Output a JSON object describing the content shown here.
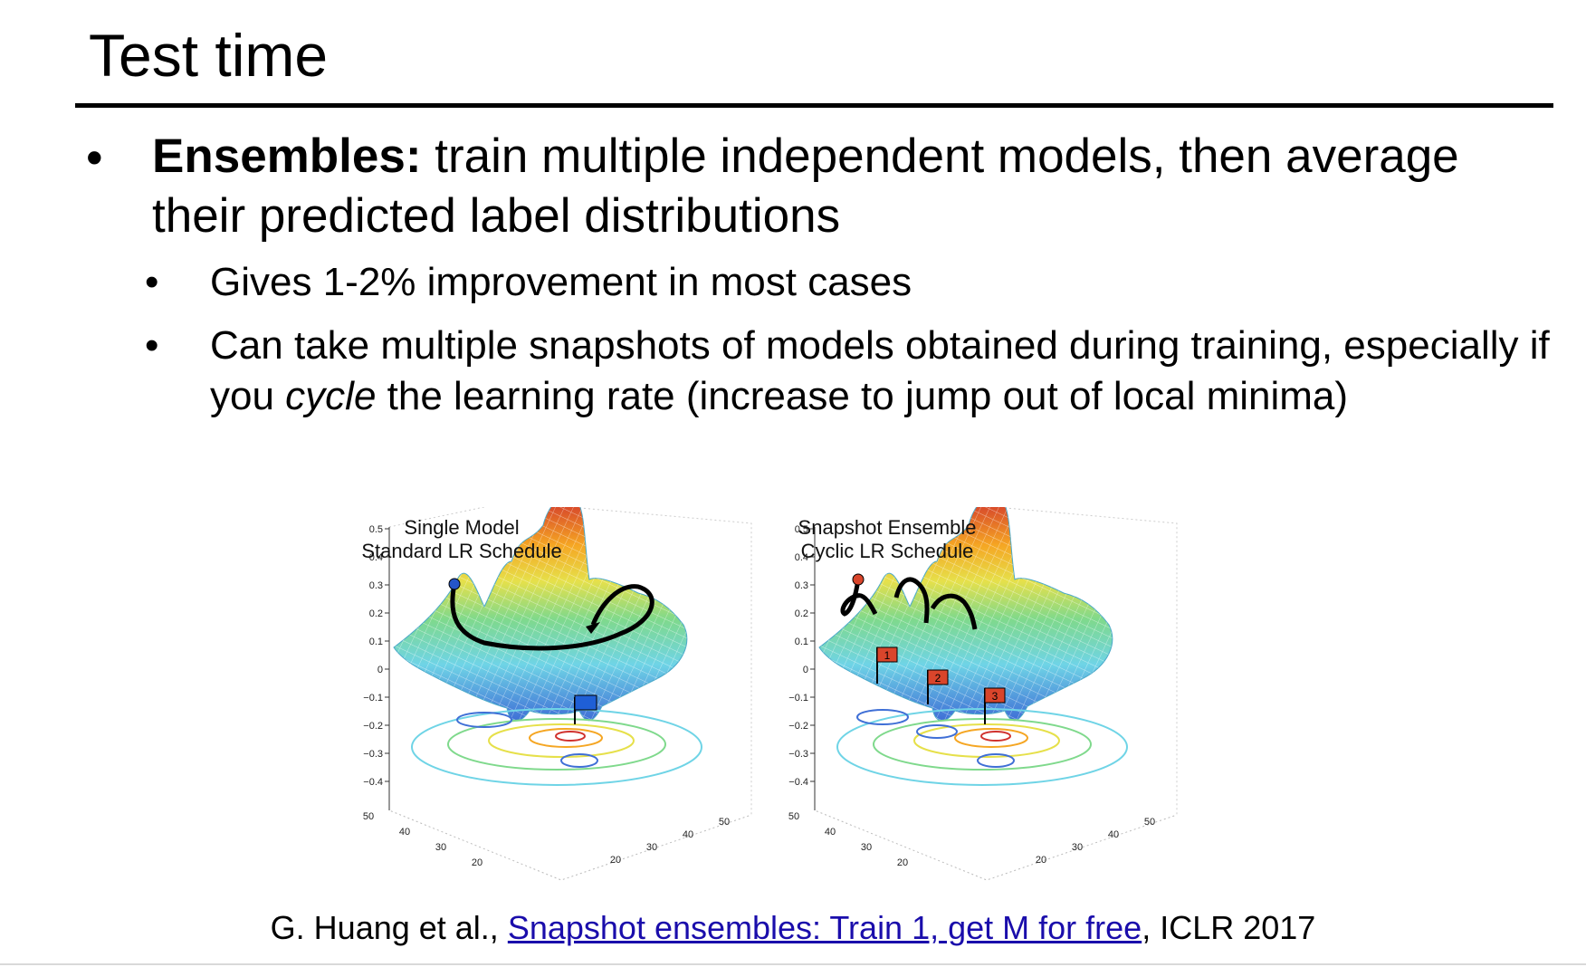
{
  "slide": {
    "title": "Test time",
    "bullet_char": "•",
    "main_bullet": {
      "bold": "Ensembles:",
      "text": " train multiple independent models, then average their predicted label distributions"
    },
    "sub_bullets": {
      "first": "Gives 1-2% improvement in most cases",
      "second_before": "Can take multiple snapshots of models obtained during training, especially if you ",
      "second_italic": "cycle",
      "second_after": " the learning rate (increase to jump out of local minima)"
    }
  },
  "figure": {
    "left_panel": {
      "title_line1": "Single Model",
      "title_line2": "Standard LR Schedule"
    },
    "right_panel": {
      "title_line1": "Snapshot Ensemble",
      "title_line2": "Cyclic LR Schedule"
    },
    "z_ticks": [
      "0.5",
      "0.4",
      "0.3",
      "0.2",
      "0.1",
      "0",
      "−0.1",
      "−0.2",
      "−0.3",
      "−0.4"
    ],
    "left_axis_ticks": [
      "50",
      "40",
      "30",
      "20"
    ],
    "right_axis_ticks": [
      "20",
      "30",
      "40",
      "50"
    ],
    "flag_labels": [
      "1",
      "2",
      "3"
    ],
    "colors": {
      "single_flag": "#1f5fd6",
      "snapshot_flag": "#d9452b",
      "start_blue": "#2455c8",
      "start_red": "#d9452b"
    }
  },
  "citation": {
    "prefix": "G. Huang et al., ",
    "link_text": "Snapshot ensembles: Train 1, get M for free",
    "suffix": ", ICLR 2017"
  }
}
